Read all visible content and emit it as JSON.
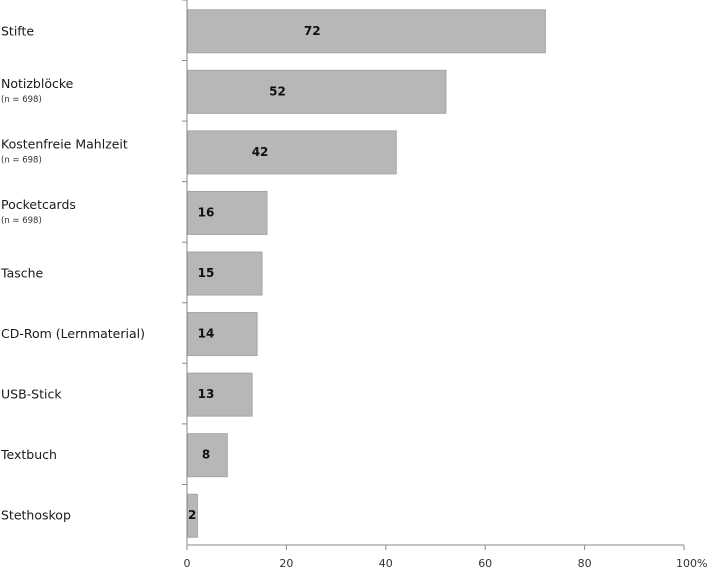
{
  "chart_data": {
    "type": "bar",
    "orientation": "horizontal",
    "categories": [
      "Stifte",
      "Notizblöcke",
      "Kostenfreie Mahlzeit",
      "Pocketcards",
      "Tasche",
      "CD-Rom (Lernmaterial)",
      "USB-Stick",
      "Textbuch",
      "Stethoskop"
    ],
    "sublabels": [
      "",
      "(n = 698)",
      "(n = 698)",
      "(n = 698)",
      "",
      "",
      "",
      "",
      ""
    ],
    "values": [
      72,
      52,
      42,
      16,
      15,
      14,
      13,
      8,
      2
    ],
    "value_labels": [
      "72",
      "52",
      "42",
      "16",
      "15",
      "14",
      "13",
      "8",
      "2"
    ],
    "xlim": [
      0,
      100
    ],
    "x_ticks": [
      0,
      20,
      40,
      60,
      80,
      100
    ],
    "x_tick_labels": [
      "0",
      "20",
      "40",
      "60",
      "80",
      "100%"
    ],
    "grid": false,
    "bar_color": "#b7b7b7",
    "bar_edge_color": "#a5a5a5",
    "axis_color": "#888888"
  }
}
